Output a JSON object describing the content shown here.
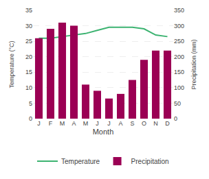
{
  "chart_data": {
    "type": "bar",
    "categories": [
      "J",
      "F",
      "M",
      "A",
      "M",
      "J",
      "J",
      "A",
      "S",
      "O",
      "N",
      "D"
    ],
    "xlabel": "Month",
    "ylabel": "Temperature (°C)",
    "y2label": "Precipitation (mm)",
    "series": [
      {
        "name": "Temperature",
        "type": "line",
        "color": "#3CB371",
        "values": [
          26.0,
          26.0,
          26.5,
          27.0,
          27.5,
          28.5,
          29.5,
          29.5,
          29.5,
          29.0,
          27.0,
          26.5
        ]
      },
      {
        "name": "Precipitation",
        "type": "bar",
        "color": "#9B0054",
        "axis": "y2",
        "values": [
          260,
          290,
          310,
          300,
          110,
          90,
          65,
          80,
          125,
          190,
          220,
          220
        ]
      }
    ],
    "ylim": [
      0,
      35
    ],
    "yticks": [
      0,
      5,
      10,
      15,
      20,
      25,
      30,
      35
    ],
    "y2lim": [
      0,
      350
    ],
    "y2ticks": [
      0,
      50,
      100,
      150,
      200,
      250,
      300,
      350
    ],
    "grid": true,
    "legend": "bottom"
  }
}
